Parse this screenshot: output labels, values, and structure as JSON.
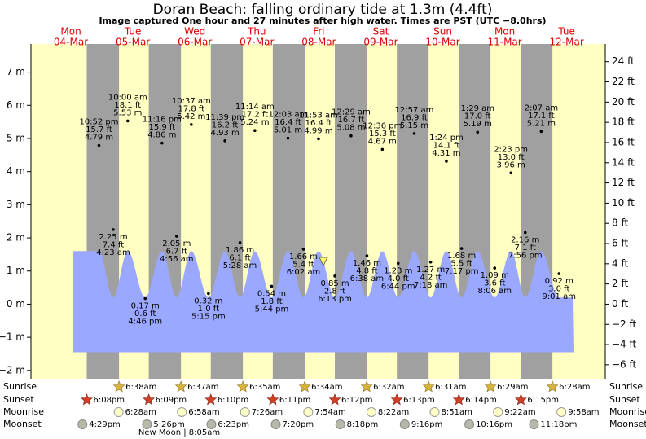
{
  "chart_data": {
    "type": "tide",
    "title": "Doran Beach: falling  ordinary tide at 1.3m (4.4ft)",
    "subtitle": "Image captured One hour and 27 minutes after high water. Times are PST (UTC −8.0hrs)",
    "days": {
      "weekdays": [
        "Mon",
        "Tue",
        "Wed",
        "Thu",
        "Fri",
        "Sat",
        "Sun",
        "Mon",
        "Tue"
      ],
      "dates": [
        "04-Mar",
        "05-Mar",
        "06-Mar",
        "07-Mar",
        "08-Mar",
        "09-Mar",
        "10-Mar",
        "11-Mar",
        "12-Mar"
      ]
    },
    "ylim": [
      -2.25,
      7.85
    ],
    "yticks": [
      {
        "value": 7,
        "label": "7 m"
      },
      {
        "value": 6,
        "label": "6 m"
      },
      {
        "value": 5,
        "label": "5 m"
      },
      {
        "value": 4,
        "label": "4 m"
      },
      {
        "value": 3,
        "label": "3 m"
      },
      {
        "value": 2,
        "label": "2 m"
      },
      {
        "value": 1,
        "label": "1 m"
      },
      {
        "value": 0,
        "label": "0 m"
      },
      {
        "value": -1,
        "label": "−1 m"
      },
      {
        "value": -2,
        "label": "−2 m"
      }
    ],
    "y2lim": [
      -7.38,
      25.75
    ],
    "y2ticks": [
      {
        "value": 24,
        "label": "24 ft"
      },
      {
        "value": 22,
        "label": "22 ft"
      },
      {
        "value": 20,
        "label": "20 ft"
      },
      {
        "value": 18,
        "label": "18 ft"
      },
      {
        "value": 16,
        "label": "16 ft"
      },
      {
        "value": 14,
        "label": "14 ft"
      },
      {
        "value": 12,
        "label": "12 ft"
      },
      {
        "value": 10,
        "label": "10 ft"
      },
      {
        "value": 8,
        "label": "8 ft"
      },
      {
        "value": 6,
        "label": "6 ft"
      },
      {
        "value": 4,
        "label": "4 ft"
      },
      {
        "value": 2,
        "label": "2 ft"
      },
      {
        "value": 0,
        "label": "0 ft"
      },
      {
        "value": -2,
        "label": "−2 ft"
      },
      {
        "value": -4,
        "label": "−4 ft"
      },
      {
        "value": -6,
        "label": "−6 ft"
      }
    ],
    "extremes": {
      "times": [
        "10:52 pm",
        "4:23 am",
        "10:00 am",
        "4:46 pm",
        "11:16 pm",
        "4:56 am",
        "10:37 am",
        "5:15 pm",
        "11:39 pm",
        "5:28 am",
        "11:14 am",
        "5:44 pm",
        "12:03 am",
        "6:02 am",
        "11:53 am",
        "6:13 pm",
        "12:29 am",
        "6:38 am",
        "12:36 pm",
        "6:44 pm",
        "12:57 am",
        "7:18 am",
        "1:24 pm",
        "7:17 pm",
        "1:29 am",
        "8:06 am",
        "2:23 pm",
        "7:56 pm",
        "2:07 am",
        "9:01 am"
      ],
      "values": [
        4.79,
        2.25,
        5.53,
        0.17,
        4.86,
        2.05,
        5.42,
        0.32,
        4.93,
        1.86,
        5.24,
        0.54,
        5.01,
        1.66,
        4.99,
        0.85,
        5.08,
        1.46,
        4.67,
        1.23,
        5.15,
        1.27,
        4.31,
        1.68,
        5.19,
        1.09,
        3.96,
        2.16,
        5.21,
        0.92
      ],
      "value_labels": [
        "4.79 m",
        "2.25 m",
        "5.53 m",
        "0.17 m",
        "4.86 m",
        "2.05 m",
        "5.42 m",
        "0.32 m",
        "4.93 m",
        "1.86 m",
        "5.24 m",
        "0.54 m",
        "5.01 m",
        "1.66 m",
        "4.99 m",
        "0.85 m",
        "5.08 m",
        "1.46 m",
        "4.67 m",
        "1.23 m",
        "5.15 m",
        "1.27 m",
        "4.31 m",
        "1.68 m",
        "5.19 m",
        "1.09 m",
        "3.96 m",
        "2.16 m",
        "5.21 m",
        "0.92 m"
      ],
      "ft_values": [
        15.7,
        7.4,
        18.1,
        0.6,
        15.9,
        6.7,
        17.8,
        1.0,
        16.2,
        6.1,
        17.2,
        1.8,
        16.4,
        5.4,
        16.4,
        2.8,
        16.7,
        4.8,
        15.3,
        4.0,
        16.9,
        4.2,
        14.1,
        5.5,
        17.0,
        3.6,
        13.0,
        7.1,
        17.1,
        3.0
      ],
      "ft_labels": [
        "15.7 ft",
        "7.4 ft",
        "18.1 ft",
        "0.6 ft",
        "15.9 ft",
        "6.7 ft",
        "17.8 ft",
        "1.0 ft",
        "16.2 ft",
        "6.1 ft",
        "17.2 ft",
        "1.8 ft",
        "16.4 ft",
        "5.4 ft",
        "16.4 ft",
        "2.8 ft",
        "16.7 ft",
        "4.8 ft",
        "15.3 ft",
        "4.0 ft",
        "16.9 ft",
        "4.2 ft",
        "14.1 ft",
        "5.5 ft",
        "17.0 ft",
        "3.6 ft",
        "13.0 ft",
        "7.1 ft",
        "17.1 ft",
        "3.0 ft"
      ]
    },
    "sun_moon": [
      {
        "name": "Sunrise",
        "times": [
          null,
          "6:38am",
          "6:37am",
          "6:35am",
          "6:34am",
          "6:32am",
          "6:31am",
          "6:29am",
          "6:28am"
        ]
      },
      {
        "name": "Sunset",
        "times": [
          "6:08pm",
          "6:09pm",
          "6:10pm",
          "6:11pm",
          "6:12pm",
          "6:13pm",
          "6:14pm",
          "6:15pm",
          null
        ]
      },
      {
        "name": "Moonrise",
        "times": [
          null,
          "6:28am",
          "6:58am",
          "7:26am",
          "7:54am",
          "8:22am",
          "8:51am",
          "9:22am",
          "9:58am"
        ]
      },
      {
        "name": "Moonset",
        "times": [
          "4:29pm",
          "5:26pm",
          "6:23pm",
          "7:20pm",
          "8:18pm",
          "9:16pm",
          "10:16pm",
          "11:18pm",
          null
        ]
      }
    ],
    "moon_phase": "New Moon | 8:05am"
  }
}
